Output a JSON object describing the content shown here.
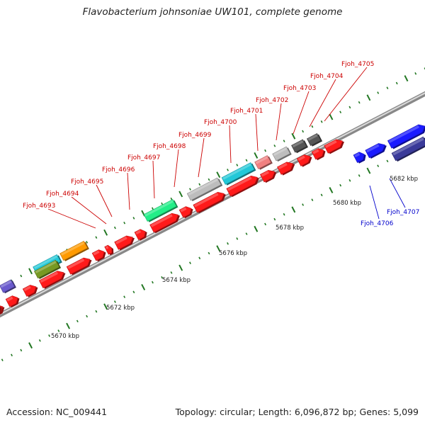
{
  "title": "Flavobacterium johnsoniae UW101, complete genome",
  "accession": "Accession: NC_009441",
  "summary": "Topology: circular; Length: 6,096,872 bp; Genes: 5,099",
  "scale_labels": [
    "5670 kbp",
    "5672 kbp",
    "5674 kbp",
    "5676 kbp",
    "5678 kbp",
    "5680 kbp",
    "5682 kbp"
  ],
  "gene_labels": [
    "Fjoh_4693",
    "Fjoh_4694",
    "Fjoh_4695",
    "Fjoh_4696",
    "Fjoh_4697",
    "Fjoh_4698",
    "Fjoh_4699",
    "Fjoh_4700",
    "Fjoh_4701",
    "Fjoh_4702",
    "Fjoh_4703",
    "Fjoh_4704",
    "Fjoh_4705",
    "Fjoh_4706",
    "Fjoh_4707"
  ],
  "colors": {
    "gene_red": "#ff1a1a",
    "gene_blue": "#1a1aff",
    "label_red": "#cc0000",
    "label_blue": "#0000cc",
    "backbone": "#999999",
    "tick_green": "#227722",
    "cog_cyan": "#22c8d8",
    "cog_orange": "#ff9a00",
    "cog_spring": "#22ee88",
    "cog_gray": "#bdbdbd",
    "cog_pink": "#f08080",
    "cog_dark": "#555555",
    "cog_violet": "#6a5acd",
    "cog_navy": "#3a3a99",
    "cog_olive": "#779922"
  }
}
